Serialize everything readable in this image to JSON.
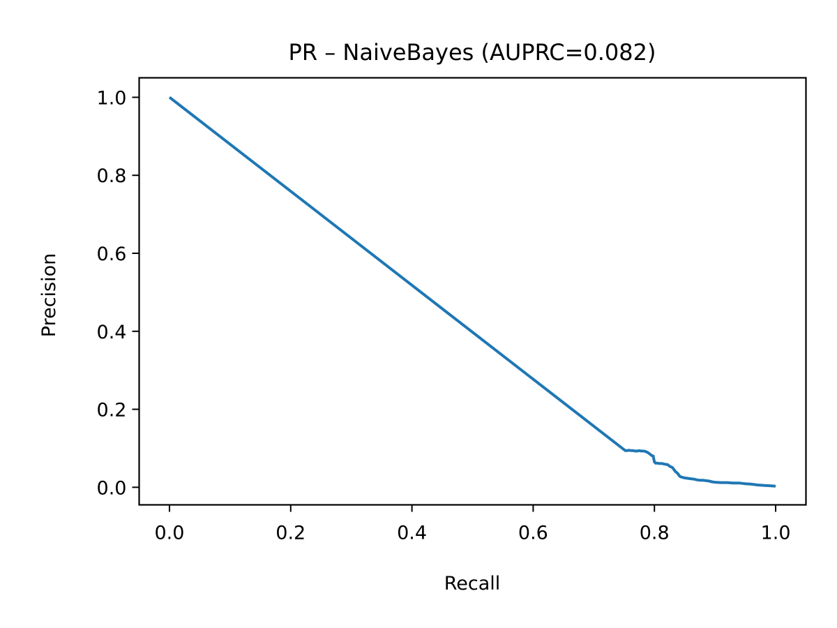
{
  "chart_data": {
    "type": "line",
    "title": "PR – NaiveBayes (AUPRC=0.082)",
    "xlabel": "Recall",
    "ylabel": "Precision",
    "xlim": [
      -0.05,
      1.05
    ],
    "ylim": [
      -0.045,
      1.05
    ],
    "grid": false,
    "xticks": [
      "0.0",
      "0.2",
      "0.4",
      "0.6",
      "0.8",
      "1.0"
    ],
    "yticks": [
      "0.0",
      "0.2",
      "0.4",
      "0.6",
      "0.8",
      "1.0"
    ],
    "series": [
      {
        "color": "#1f77b4",
        "x": [
          0.0,
          0.752,
          0.755,
          0.758,
          0.762,
          0.765,
          0.768,
          0.772,
          0.775,
          0.778,
          0.782,
          0.785,
          0.788,
          0.792,
          0.795,
          0.798,
          0.8,
          0.802,
          0.805,
          0.808,
          0.812,
          0.815,
          0.818,
          0.822,
          0.825,
          0.828,
          0.83,
          0.832,
          0.835,
          0.838,
          0.84,
          0.842,
          0.845,
          0.848,
          0.85,
          0.855,
          0.86,
          0.865,
          0.87,
          0.875,
          0.88,
          0.885,
          0.89,
          0.895,
          0.9,
          0.91,
          0.92,
          0.93,
          0.94,
          0.95,
          0.96,
          0.97,
          0.98,
          0.99,
          1.0
        ],
        "y": [
          1.0,
          0.094,
          0.094,
          0.095,
          0.094,
          0.094,
          0.093,
          0.093,
          0.094,
          0.093,
          0.093,
          0.092,
          0.09,
          0.086,
          0.082,
          0.08,
          0.065,
          0.062,
          0.062,
          0.061,
          0.061,
          0.06,
          0.059,
          0.058,
          0.054,
          0.052,
          0.05,
          0.046,
          0.04,
          0.036,
          0.032,
          0.028,
          0.026,
          0.025,
          0.024,
          0.023,
          0.022,
          0.021,
          0.019,
          0.018,
          0.018,
          0.017,
          0.016,
          0.014,
          0.013,
          0.012,
          0.012,
          0.011,
          0.011,
          0.009,
          0.008,
          0.006,
          0.005,
          0.004,
          0.003
        ]
      }
    ]
  }
}
